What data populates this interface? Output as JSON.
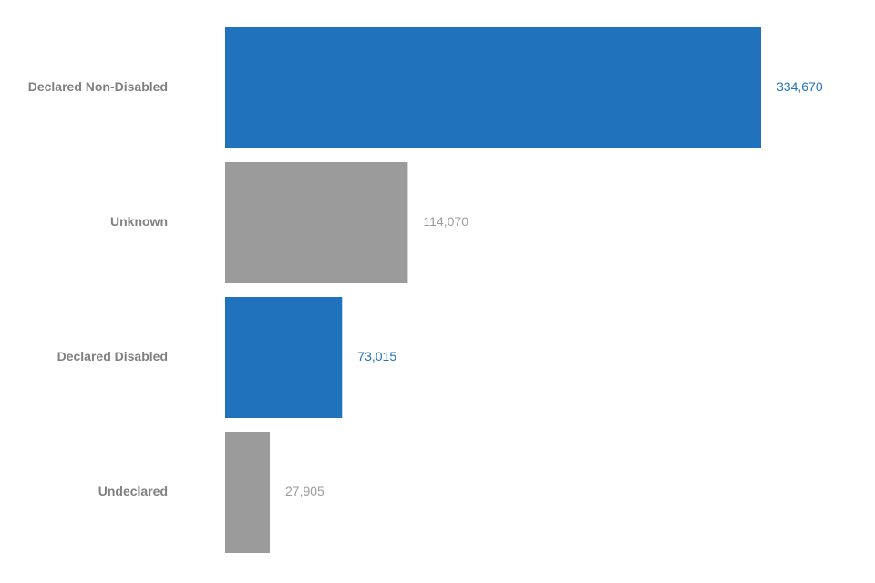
{
  "chart_data": {
    "type": "bar",
    "orientation": "horizontal",
    "title": "",
    "xlabel": "",
    "ylabel": "",
    "categories": [
      "Declared Non-Disabled",
      "Unknown",
      "Declared Disabled",
      "Undeclared"
    ],
    "values": [
      334670,
      114070,
      73015,
      27905
    ],
    "value_labels": [
      "334,670",
      "114,070",
      "73,015",
      "27,905"
    ],
    "bar_colors": [
      "#2172bd",
      "#9b9b9b",
      "#2172bd",
      "#9b9b9b"
    ],
    "label_colors": [
      "#2172bd",
      "#9b9b9b",
      "#2172bd",
      "#9b9b9b"
    ],
    "xlim": [
      0,
      334670
    ],
    "grid": false,
    "legend": "none"
  }
}
